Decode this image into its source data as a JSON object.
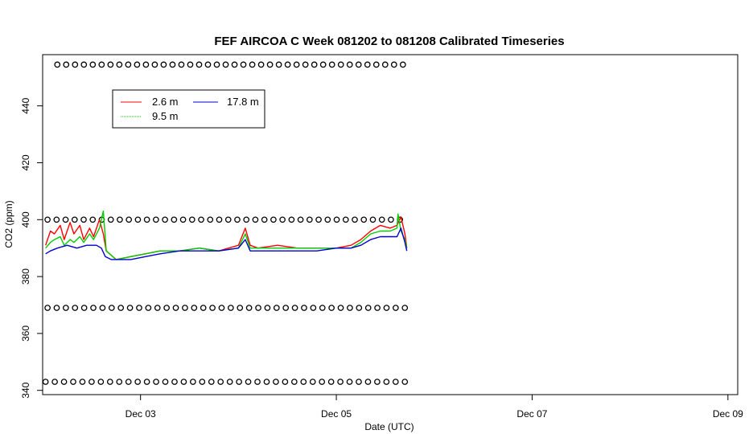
{
  "chart_data": {
    "type": "line",
    "title": "FEF AIRCOA C  Week 081202 to 081208  Calibrated Timeseries",
    "xlabel": "Date (UTC)",
    "ylabel": "CO2 (ppm)",
    "xlim": [
      2.0,
      9.1
    ],
    "ylim": [
      338.5,
      458.0
    ],
    "x_ticks": [
      {
        "value": 3,
        "label": "Dec 03"
      },
      {
        "value": 5,
        "label": "Dec 05"
      },
      {
        "value": 7,
        "label": "Dec 07"
      },
      {
        "value": 9,
        "label": "Dec 09"
      }
    ],
    "y_ticks": [
      340,
      360,
      380,
      400,
      420,
      440
    ],
    "legend": {
      "placement": "top-left",
      "entries": [
        {
          "label": "2.6 m",
          "color": "#ff0000",
          "style": "solid"
        },
        {
          "label": "9.5 m",
          "color": "#00cc00",
          "style": "dotted"
        },
        {
          "label": "17.8 m",
          "color": "#0000cc",
          "style": "solid"
        }
      ]
    },
    "series": [
      {
        "name": "2.6 m",
        "color": "#ff0000",
        "x": [
          2.03,
          2.08,
          2.12,
          2.18,
          2.22,
          2.28,
          2.32,
          2.38,
          2.42,
          2.48,
          2.52,
          2.58,
          2.62,
          2.65,
          2.75,
          2.9,
          3.05,
          3.2,
          3.4,
          3.6,
          3.8,
          4.0,
          4.07,
          4.12,
          4.2,
          4.4,
          4.6,
          4.8,
          5.0,
          5.15,
          5.25,
          5.35,
          5.45,
          5.55,
          5.62,
          5.66,
          5.7,
          5.72
        ],
        "y": [
          391,
          396,
          395,
          398,
          393,
          399,
          395,
          398,
          393,
          397,
          394,
          400,
          395,
          389,
          386,
          387,
          388,
          389,
          389,
          390,
          389,
          391,
          397,
          391,
          390,
          391,
          390,
          390,
          390,
          391,
          393,
          396,
          398,
          397,
          398,
          401,
          395,
          390
        ]
      },
      {
        "name": "9.5 m",
        "color": "#00cc00",
        "x": [
          2.03,
          2.08,
          2.12,
          2.18,
          2.22,
          2.28,
          2.32,
          2.38,
          2.42,
          2.48,
          2.52,
          2.58,
          2.62,
          2.65,
          2.75,
          2.9,
          3.05,
          3.2,
          3.4,
          3.6,
          3.8,
          4.0,
          4.07,
          4.12,
          4.2,
          4.4,
          4.6,
          4.8,
          5.0,
          5.15,
          5.25,
          5.35,
          5.45,
          5.55,
          5.62,
          5.63,
          5.66,
          5.7,
          5.72
        ],
        "y": [
          390,
          392,
          393,
          394,
          391,
          393,
          392,
          394,
          392,
          395,
          393,
          397,
          403,
          389,
          386,
          387,
          388,
          389,
          389,
          390,
          389,
          390,
          395,
          390,
          390,
          390,
          390,
          390,
          390,
          390,
          392,
          395,
          396,
          396,
          397,
          402,
          396,
          393,
          390
        ]
      },
      {
        "name": "17.8 m",
        "color": "#0000cc",
        "x": [
          2.03,
          2.08,
          2.15,
          2.25,
          2.35,
          2.45,
          2.55,
          2.6,
          2.64,
          2.7,
          2.8,
          2.9,
          3.05,
          3.2,
          3.4,
          3.6,
          3.8,
          4.0,
          4.07,
          4.12,
          4.2,
          4.4,
          4.6,
          4.8,
          5.0,
          5.15,
          5.25,
          5.35,
          5.45,
          5.55,
          5.62,
          5.66,
          5.7,
          5.72
        ],
        "y": [
          388,
          389,
          390,
          391,
          390,
          391,
          391,
          390,
          387,
          386,
          386,
          386,
          387,
          388,
          389,
          389,
          389,
          390,
          393,
          389,
          389,
          389,
          389,
          389,
          390,
          390,
          391,
          393,
          394,
          394,
          394,
          397,
          392,
          389
        ]
      }
    ],
    "marker_rows": [
      {
        "y": 454.5,
        "x_start": 2.15,
        "x_end": 5.68,
        "n": 40
      },
      {
        "y": 400.0,
        "x_start": 2.05,
        "x_end": 5.65,
        "n": 40
      },
      {
        "y": 369.0,
        "x_start": 2.05,
        "x_end": 5.7,
        "n": 40
      },
      {
        "y": 343.0,
        "x_start": 2.03,
        "x_end": 5.7,
        "n": 40
      }
    ]
  }
}
